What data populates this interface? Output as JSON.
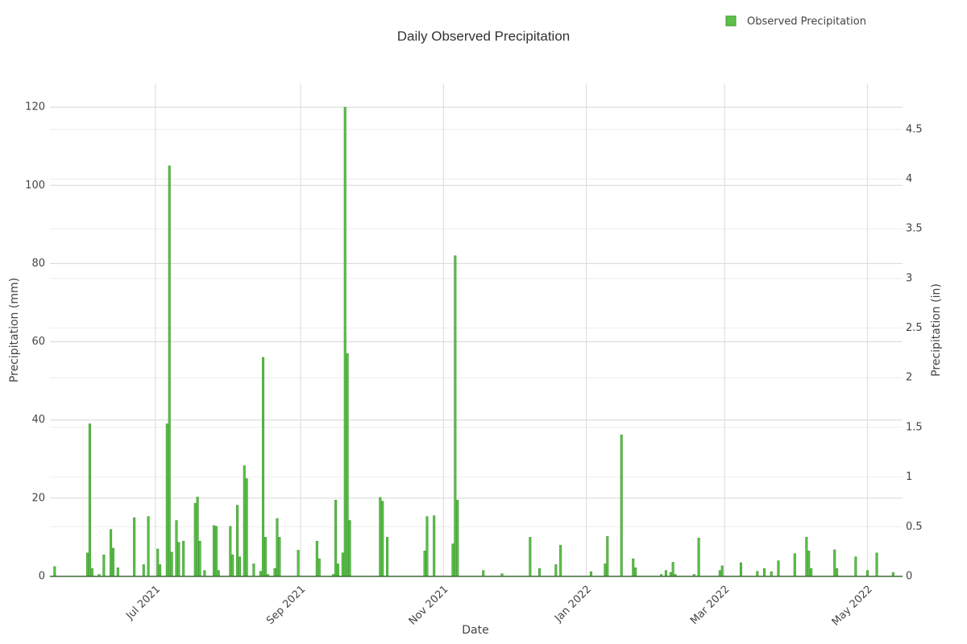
{
  "chart_data": {
    "type": "bar",
    "title": "Daily Observed Precipitation",
    "x_label": "Date",
    "y_label": "Precipitation (mm)",
    "y2_label": "Precipitation (in)",
    "x": [
      "2021-05-19",
      "2021-06-02",
      "2021-06-03",
      "2021-06-04",
      "2021-06-07",
      "2021-06-09",
      "2021-06-12",
      "2021-06-13",
      "2021-06-15",
      "2021-06-22",
      "2021-06-26",
      "2021-06-28",
      "2021-07-02",
      "2021-07-03",
      "2021-07-06",
      "2021-07-07",
      "2021-07-08",
      "2021-07-10",
      "2021-07-11",
      "2021-07-13",
      "2021-07-18",
      "2021-07-19",
      "2021-07-20",
      "2021-07-22",
      "2021-07-26",
      "2021-07-27",
      "2021-07-28",
      "2021-08-02",
      "2021-08-03",
      "2021-08-05",
      "2021-08-06",
      "2021-08-08",
      "2021-08-09",
      "2021-08-12",
      "2021-08-15",
      "2021-08-16",
      "2021-08-17",
      "2021-08-18",
      "2021-08-21",
      "2021-08-22",
      "2021-08-23",
      "2021-08-31",
      "2021-09-08",
      "2021-09-09",
      "2021-09-15",
      "2021-09-16",
      "2021-09-17",
      "2021-09-19",
      "2021-09-20",
      "2021-09-21",
      "2021-09-22",
      "2021-10-05",
      "2021-10-06",
      "2021-10-08",
      "2021-10-24",
      "2021-10-25",
      "2021-10-28",
      "2021-11-05",
      "2021-11-06",
      "2021-11-07",
      "2021-11-18",
      "2021-11-26",
      "2021-12-08",
      "2021-12-12",
      "2021-12-19",
      "2021-12-21",
      "2022-01-03",
      "2022-01-09",
      "2022-01-10",
      "2022-01-16",
      "2022-01-21",
      "2022-01-22",
      "2022-02-02",
      "2022-02-04",
      "2022-02-06",
      "2022-02-07",
      "2022-02-08",
      "2022-02-16",
      "2022-02-18",
      "2022-02-27",
      "2022-02-28",
      "2022-03-08",
      "2022-03-15",
      "2022-03-18",
      "2022-03-21",
      "2022-03-24",
      "2022-03-31",
      "2022-04-05",
      "2022-04-06",
      "2022-04-07",
      "2022-04-17",
      "2022-04-18",
      "2022-04-26",
      "2022-05-01",
      "2022-05-05",
      "2022-05-12"
    ],
    "series": [
      {
        "name": "Observed Precipitation",
        "color": "#5cbf4a",
        "values": [
          2.5,
          6,
          39,
          2,
          0.5,
          5.5,
          12,
          7.2,
          2.2,
          15,
          3,
          15.3,
          7,
          3,
          39,
          105,
          6.2,
          14.3,
          8.7,
          9,
          18.7,
          20.3,
          9,
          1.5,
          13,
          12.8,
          1.5,
          12.8,
          5.5,
          18.2,
          5,
          28.3,
          25,
          3.2,
          1.3,
          56,
          10,
          0.5,
          2,
          14.8,
          10,
          6.7,
          9,
          4.5,
          0.5,
          19.5,
          3.2,
          6,
          120,
          57,
          14.3,
          20.2,
          19.2,
          10,
          6.5,
          15.3,
          15.5,
          8.3,
          82,
          19.5,
          1.5,
          0.7,
          10,
          2,
          3,
          8,
          1.2,
          3.2,
          10.2,
          36.2,
          4.5,
          2.2,
          0.5,
          1.5,
          1,
          3.6,
          0.5,
          0.5,
          9.8,
          1.5,
          2.7,
          3.5,
          1.3,
          2,
          1.2,
          4,
          5.8,
          10,
          6.5,
          2,
          6.8,
          2,
          5,
          1.5,
          6,
          1
        ]
      }
    ],
    "xlim": [
      "2021-05-17",
      "2022-05-16"
    ],
    "xticks": [
      {
        "value": "2021-07-01",
        "label": "Jul 2021"
      },
      {
        "value": "2021-09-01",
        "label": "Sep 2021"
      },
      {
        "value": "2021-11-01",
        "label": "Nov 2021"
      },
      {
        "value": "2022-01-01",
        "label": "Jan 2022"
      },
      {
        "value": "2022-03-01",
        "label": "Mar 2022"
      },
      {
        "value": "2022-05-01",
        "label": "May 2022"
      }
    ],
    "ylim": [
      0,
      126
    ],
    "yticks": [
      0,
      20,
      40,
      60,
      80,
      100,
      120
    ],
    "y2lim": [
      0,
      4.96
    ],
    "y2ticks": [
      0,
      0.5,
      1,
      1.5,
      2,
      2.5,
      3,
      3.5,
      4,
      4.5
    ],
    "grid": true,
    "legend": "top-right"
  }
}
